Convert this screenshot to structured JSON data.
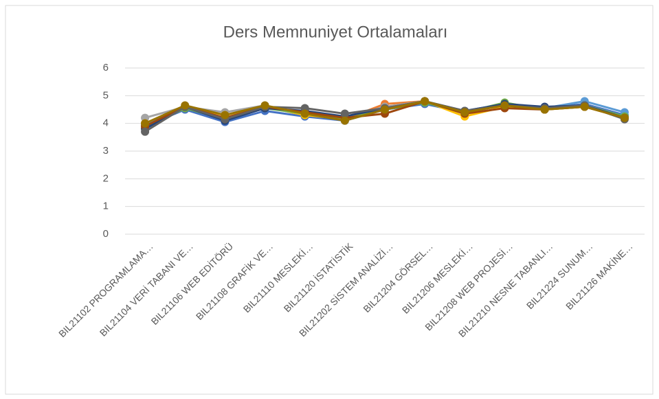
{
  "chart_data": {
    "type": "line",
    "title": "Ders Memnuniyet Ortalamaları",
    "categories": [
      "BIL21102 PROGRAMLAMA…",
      "BIL21104 VERİ TABANI VE…",
      "BIL21106 WEB EDİTÖRÜ",
      "BIL21108 GRAFİK VE…",
      "BIL21110 MESLEKİ…",
      "BIL21120 İSTATİSTİK",
      "BIL21202 SİSTEM ANALİZİ…",
      "BIL21204 GÖRSEL…",
      "BIL21206 MESLEKİ…",
      "BIL21208 WEB PROJESİ…",
      "BIL21210 NESNE TABANLI…",
      "BIL21224 SUNUM…",
      "BIL21126 MAKİNE…"
    ],
    "series": [
      {
        "color": "#4472c4",
        "values": [
          3.9,
          4.5,
          4.05,
          4.45,
          4.25,
          4.1,
          4.5,
          4.7,
          4.4,
          4.7,
          4.55,
          4.7,
          4.3
        ]
      },
      {
        "color": "#ed7d31",
        "values": [
          3.95,
          4.6,
          4.3,
          4.6,
          4.3,
          4.15,
          4.7,
          4.8,
          4.4,
          4.65,
          4.5,
          4.65,
          4.2
        ]
      },
      {
        "color": "#a5a5a5",
        "values": [
          4.2,
          4.6,
          4.4,
          4.65,
          4.3,
          4.2,
          4.6,
          4.8,
          4.35,
          4.7,
          4.5,
          4.65,
          4.25
        ]
      },
      {
        "color": "#ffc000",
        "values": [
          4.0,
          4.6,
          4.3,
          4.6,
          4.3,
          4.15,
          4.55,
          4.8,
          4.25,
          4.6,
          4.5,
          4.6,
          4.2
        ]
      },
      {
        "color": "#5b9bd5",
        "values": [
          3.95,
          4.55,
          4.2,
          4.6,
          4.35,
          4.1,
          4.5,
          4.75,
          4.45,
          4.7,
          4.55,
          4.8,
          4.4
        ]
      },
      {
        "color": "#70ad47",
        "values": [
          3.85,
          4.55,
          4.15,
          4.55,
          4.35,
          4.15,
          4.5,
          4.75,
          4.4,
          4.75,
          4.5,
          4.65,
          4.25
        ]
      },
      {
        "color": "#264478",
        "values": [
          3.8,
          4.6,
          4.1,
          4.55,
          4.45,
          4.25,
          4.55,
          4.8,
          4.45,
          4.7,
          4.6,
          4.65,
          4.2
        ]
      },
      {
        "color": "#9e480e",
        "values": [
          3.9,
          4.6,
          4.2,
          4.6,
          4.4,
          4.2,
          4.35,
          4.8,
          4.35,
          4.55,
          4.5,
          4.6,
          4.2
        ]
      },
      {
        "color": "#636363",
        "values": [
          3.7,
          4.6,
          4.15,
          4.6,
          4.55,
          4.35,
          4.55,
          4.8,
          4.45,
          4.65,
          4.55,
          4.65,
          4.15
        ]
      },
      {
        "color": "#997300",
        "values": [
          4.0,
          4.65,
          4.3,
          4.65,
          4.35,
          4.1,
          4.5,
          4.8,
          4.4,
          4.65,
          4.5,
          4.6,
          4.2
        ]
      }
    ],
    "ylim": [
      0,
      6
    ],
    "yticks": [
      0,
      1,
      2,
      3,
      4,
      5,
      6
    ],
    "grid": true
  }
}
